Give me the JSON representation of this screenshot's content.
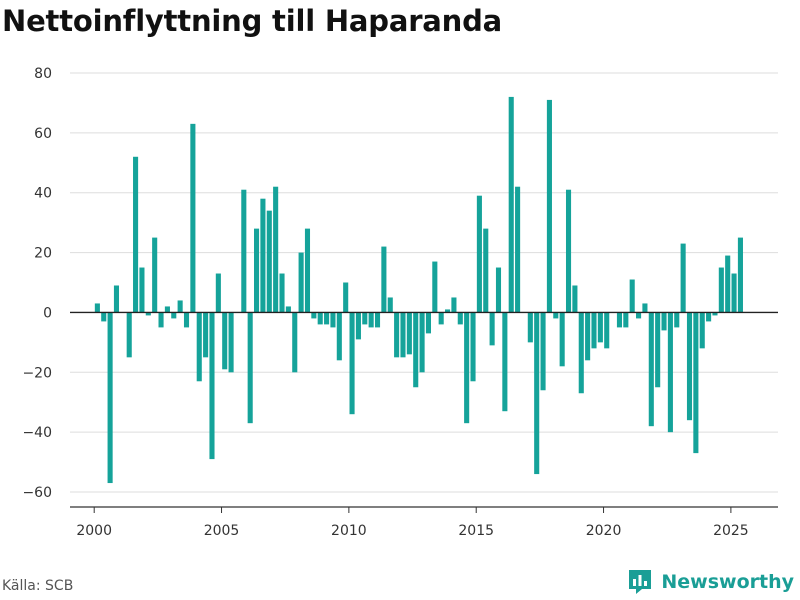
{
  "title": "Nettoinflyttning till Haparanda",
  "source": "Källa: SCB",
  "brand": "Newsworthy",
  "colors": {
    "bar": "#15a39a",
    "brand": "#1a9e96",
    "grid": "#dddddd",
    "axis": "#333333"
  },
  "chart_data": {
    "type": "bar",
    "title": "Nettoinflyttning till Haparanda",
    "xlabel": "",
    "ylabel": "",
    "ylim": [
      -65,
      85
    ],
    "xlim": [
      1999.05,
      2026.85
    ],
    "yticks": [
      80,
      60,
      40,
      20,
      0,
      -20,
      -40,
      -60
    ],
    "xticks": [
      2000,
      2005,
      2010,
      2015,
      2020,
      2025
    ],
    "grid": true,
    "legend": "none",
    "series": [
      {
        "frequency": "quarterly",
        "start": "2000 Q1",
        "values": [
          3,
          -3,
          -57,
          9,
          0,
          -15,
          52,
          15,
          -1,
          25,
          -5,
          2,
          -2,
          4,
          -5,
          63,
          -23,
          -15,
          -49,
          13,
          -19,
          -20,
          0,
          41,
          -37,
          28,
          38,
          34,
          42,
          13,
          2,
          -20,
          20,
          28,
          -2,
          -4,
          -4,
          -5,
          -16,
          10,
          -34,
          -9,
          -4,
          -5,
          -5,
          22,
          5,
          -15,
          -15,
          -14,
          -25,
          -20,
          -7,
          17,
          -4,
          1,
          5,
          -4,
          -37,
          -23,
          39,
          28,
          -11,
          15,
          -33,
          72,
          42,
          0,
          -10,
          -54,
          -26,
          71,
          -2,
          -18,
          41,
          9,
          -27,
          -16,
          -12,
          -10,
          -12,
          0,
          -5,
          -5,
          11,
          -2,
          3,
          -38,
          -25,
          -6,
          -40,
          -5,
          23,
          -36,
          -47,
          -12,
          -3,
          -1,
          15,
          19,
          13,
          25
        ]
      }
    ]
  }
}
